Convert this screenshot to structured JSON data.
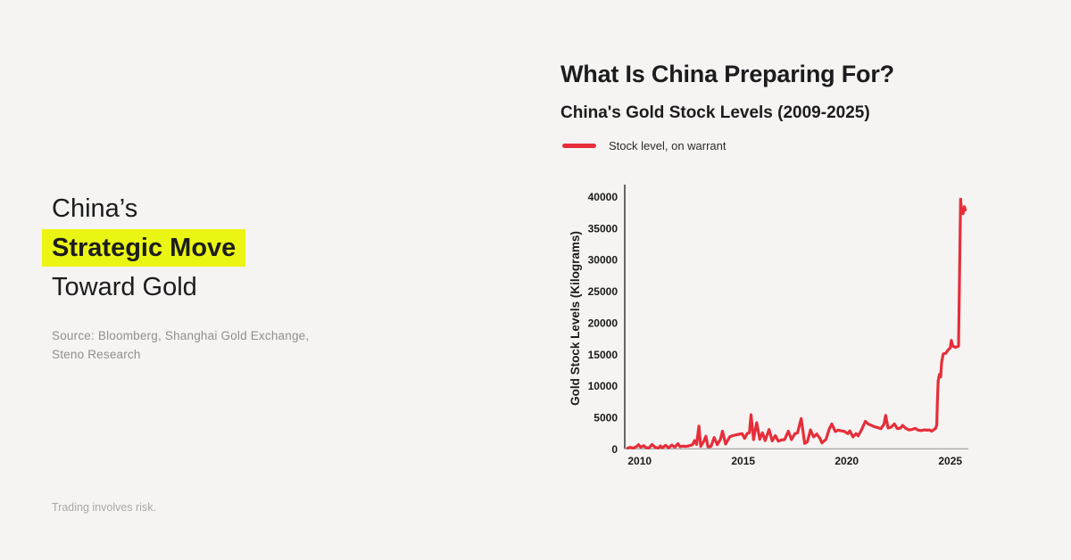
{
  "page": {
    "background": "#f5f4f2"
  },
  "left_panel": {
    "title_line1": "China’s",
    "title_highlight": "Strategic Move",
    "title_line3": "Toward Gold",
    "highlight_color": "#eaf513",
    "source_lines": [
      "Source: Bloomberg, Shanghai Gold Exchange,",
      "Steno Research"
    ],
    "disclaimer": "Trading involves risk."
  },
  "chart_panel": {
    "title": "What Is China Preparing For?",
    "subtitle": "China's Gold Stock Levels (2009-2025)",
    "legend": {
      "label": "Stock level, on warrant",
      "color": "#e62e3a"
    }
  },
  "chart_data": {
    "type": "line",
    "title": "China's Gold Stock Levels (2009-2025)",
    "xlabel": "",
    "ylabel": "Gold Stock Levels (Kilograms)",
    "x_ticks": [
      2010,
      2015,
      2020,
      2025
    ],
    "y_ticks": [
      0,
      5000,
      10000,
      15000,
      20000,
      25000,
      30000,
      35000,
      40000
    ],
    "xlim": [
      2009.2,
      2025.9
    ],
    "ylim": [
      0,
      42000
    ],
    "grid": false,
    "legend_position": "top-left-above-chart",
    "line_color": "#e62e3a",
    "axis_color": "#2a2a2a",
    "series": [
      {
        "name": "Stock level, on warrant",
        "points": [
          [
            2009.42,
            120
          ],
          [
            2009.55,
            220
          ],
          [
            2009.7,
            130
          ],
          [
            2009.85,
            350
          ],
          [
            2009.95,
            650
          ],
          [
            2010.05,
            250
          ],
          [
            2010.2,
            500
          ],
          [
            2010.3,
            180
          ],
          [
            2010.45,
            130
          ],
          [
            2010.6,
            700
          ],
          [
            2010.75,
            220
          ],
          [
            2010.9,
            130
          ],
          [
            2011.0,
            450
          ],
          [
            2011.1,
            150
          ],
          [
            2011.25,
            550
          ],
          [
            2011.4,
            150
          ],
          [
            2011.55,
            600
          ],
          [
            2011.7,
            250
          ],
          [
            2011.85,
            800
          ],
          [
            2011.95,
            350
          ],
          [
            2012.1,
            420
          ],
          [
            2012.25,
            380
          ],
          [
            2012.4,
            500
          ],
          [
            2012.55,
            650
          ],
          [
            2012.65,
            1300
          ],
          [
            2012.75,
            700
          ],
          [
            2012.86,
            3600
          ],
          [
            2012.95,
            400
          ],
          [
            2013.1,
            1200
          ],
          [
            2013.2,
            2000
          ],
          [
            2013.3,
            300
          ],
          [
            2013.45,
            400
          ],
          [
            2013.6,
            1800
          ],
          [
            2013.75,
            650
          ],
          [
            2013.9,
            1500
          ],
          [
            2014.0,
            2800
          ],
          [
            2014.15,
            750
          ],
          [
            2014.35,
            1900
          ],
          [
            2014.5,
            2100
          ],
          [
            2014.65,
            2200
          ],
          [
            2014.8,
            2300
          ],
          [
            2014.95,
            2400
          ],
          [
            2015.07,
            1650
          ],
          [
            2015.2,
            2450
          ],
          [
            2015.3,
            2550
          ],
          [
            2015.38,
            5400
          ],
          [
            2015.5,
            1450
          ],
          [
            2015.65,
            4150
          ],
          [
            2015.8,
            1500
          ],
          [
            2015.93,
            2550
          ],
          [
            2016.06,
            1300
          ],
          [
            2016.25,
            3050
          ],
          [
            2016.4,
            1250
          ],
          [
            2016.55,
            2100
          ],
          [
            2016.7,
            1200
          ],
          [
            2016.85,
            1400
          ],
          [
            2017.0,
            1450
          ],
          [
            2017.18,
            2800
          ],
          [
            2017.33,
            1450
          ],
          [
            2017.5,
            2400
          ],
          [
            2017.62,
            2500
          ],
          [
            2017.8,
            4800
          ],
          [
            2017.97,
            850
          ],
          [
            2018.1,
            1100
          ],
          [
            2018.25,
            3000
          ],
          [
            2018.4,
            1900
          ],
          [
            2018.55,
            2350
          ],
          [
            2018.7,
            1700
          ],
          [
            2018.8,
            930
          ],
          [
            2019.0,
            1500
          ],
          [
            2019.15,
            3100
          ],
          [
            2019.28,
            3950
          ],
          [
            2019.45,
            2750
          ],
          [
            2019.6,
            2950
          ],
          [
            2019.75,
            2850
          ],
          [
            2019.9,
            2750
          ],
          [
            2020.05,
            2400
          ],
          [
            2020.15,
            2850
          ],
          [
            2020.3,
            1900
          ],
          [
            2020.45,
            2400
          ],
          [
            2020.55,
            2050
          ],
          [
            2020.7,
            2900
          ],
          [
            2020.9,
            4350
          ],
          [
            2021.05,
            3900
          ],
          [
            2021.2,
            3700
          ],
          [
            2021.35,
            3500
          ],
          [
            2021.5,
            3350
          ],
          [
            2021.65,
            3200
          ],
          [
            2021.8,
            3900
          ],
          [
            2021.88,
            5300
          ],
          [
            2022.0,
            3300
          ],
          [
            2022.15,
            3450
          ],
          [
            2022.3,
            3950
          ],
          [
            2022.45,
            3200
          ],
          [
            2022.6,
            3300
          ],
          [
            2022.7,
            3700
          ],
          [
            2022.85,
            3250
          ],
          [
            2023.0,
            3000
          ],
          [
            2023.15,
            3050
          ],
          [
            2023.3,
            3250
          ],
          [
            2023.45,
            2950
          ],
          [
            2023.6,
            2900
          ],
          [
            2023.75,
            3000
          ],
          [
            2023.9,
            2950
          ],
          [
            2024.0,
            3000
          ],
          [
            2024.1,
            2800
          ],
          [
            2024.2,
            3000
          ],
          [
            2024.3,
            3300
          ],
          [
            2024.35,
            3800
          ],
          [
            2024.38,
            7500
          ],
          [
            2024.42,
            10800
          ],
          [
            2024.48,
            11800
          ],
          [
            2024.54,
            11400
          ],
          [
            2024.58,
            13650
          ],
          [
            2024.66,
            15050
          ],
          [
            2024.78,
            15150
          ],
          [
            2024.9,
            15700
          ],
          [
            2025.0,
            16000
          ],
          [
            2025.05,
            17200
          ],
          [
            2025.12,
            16300
          ],
          [
            2025.25,
            16100
          ],
          [
            2025.4,
            16300
          ],
          [
            2025.5,
            39600
          ],
          [
            2025.55,
            37600
          ],
          [
            2025.62,
            37300
          ],
          [
            2025.68,
            38400
          ],
          [
            2025.73,
            37900
          ]
        ]
      }
    ]
  }
}
